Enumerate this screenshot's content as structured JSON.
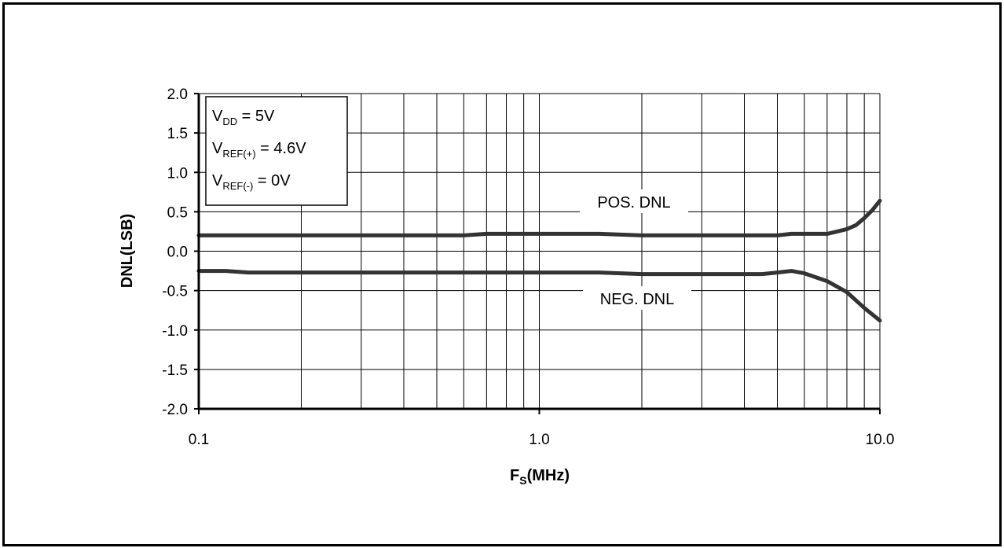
{
  "chart_data": {
    "type": "line",
    "xlabel_main": "F",
    "xlabel_sub": "S",
    "xlabel_unit": "(MHz)",
    "ylabel": "DNL(LSB)",
    "xscale": "log",
    "xlim": [
      0.1,
      10.0
    ],
    "ylim": [
      -2.0,
      2.0
    ],
    "grid": true,
    "x_tick_labels": [
      "0.1",
      "1.0",
      "10.0"
    ],
    "y_tick_labels": [
      "2.0",
      "1.5",
      "1.0",
      "0.5",
      "0.0",
      "-0.5",
      "-1.0",
      "-1.5",
      "-2.0"
    ],
    "conditions": [
      {
        "main": "V",
        "sub": "DD",
        "rest": " = 5V"
      },
      {
        "main": "V",
        "sub": "REF(+)",
        "rest": " = 4.6V"
      },
      {
        "main": "V",
        "sub": "REF(-)",
        "rest": " = 0V"
      }
    ],
    "series": [
      {
        "name": "POS. DNL",
        "x": [
          0.1,
          0.15,
          0.3,
          0.5,
          0.6,
          0.7,
          1.0,
          1.5,
          2.0,
          3.0,
          4.5,
          5.0,
          5.5,
          6.0,
          7.0,
          7.5,
          8.0,
          8.5,
          9.0,
          9.5,
          10.0
        ],
        "y": [
          0.2,
          0.2,
          0.2,
          0.2,
          0.2,
          0.22,
          0.22,
          0.22,
          0.2,
          0.2,
          0.2,
          0.2,
          0.22,
          0.22,
          0.22,
          0.25,
          0.28,
          0.33,
          0.42,
          0.52,
          0.64
        ]
      },
      {
        "name": "NEG. DNL",
        "x": [
          0.1,
          0.12,
          0.14,
          0.3,
          0.5,
          1.0,
          1.5,
          2.0,
          3.0,
          4.5,
          5.0,
          5.5,
          6.0,
          7.0,
          8.0,
          9.0,
          10.0
        ],
        "y": [
          -0.25,
          -0.25,
          -0.27,
          -0.27,
          -0.27,
          -0.27,
          -0.27,
          -0.29,
          -0.29,
          -0.29,
          -0.27,
          -0.25,
          -0.28,
          -0.38,
          -0.52,
          -0.72,
          -0.88
        ]
      }
    ]
  }
}
